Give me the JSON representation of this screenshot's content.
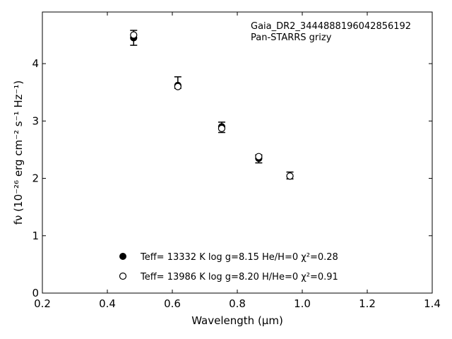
{
  "chart_data": {
    "type": "scatter",
    "xlabel": "Wavelength (μm)",
    "ylabel": "fν (10⁻²⁶ erg cm⁻² s⁻¹ Hz⁻¹)",
    "xlim": [
      0.2,
      1.4
    ],
    "ylim": [
      0,
      4.9
    ],
    "xticks": [
      "0.2",
      "0.4",
      "0.6",
      "0.8",
      "1.0",
      "1.2",
      "1.4"
    ],
    "yticks": [
      "0",
      "1",
      "2",
      "3",
      "4"
    ],
    "annotations": [
      "Gaia_DR2_3444888196042856192",
      "Pan-STARRS grizy"
    ],
    "legend_position": "bottom-center",
    "series": [
      {
        "name": "Teff= 13332 K  log g=8.15  He/H=0  χ²=0.28",
        "marker": "filled-circle",
        "x": [
          0.481,
          0.617,
          0.752,
          0.866,
          0.962
        ],
        "y": [
          4.45,
          3.62,
          2.9,
          2.35,
          2.04
        ]
      },
      {
        "name": "Teff= 13986 K  log g=8.20  H/He=0  χ²=0.91",
        "marker": "open-circle",
        "x": [
          0.481,
          0.617,
          0.752,
          0.866,
          0.962
        ],
        "y": [
          4.5,
          3.6,
          2.87,
          2.38,
          2.04
        ]
      }
    ],
    "observed": {
      "marker": "errorbar",
      "x": [
        0.481,
        0.617,
        0.752,
        0.866,
        0.962
      ],
      "y": [
        4.45,
        3.67,
        2.89,
        2.34,
        2.05
      ],
      "yerr": [
        0.13,
        0.1,
        0.09,
        0.07,
        0.06
      ]
    },
    "grid": false
  }
}
